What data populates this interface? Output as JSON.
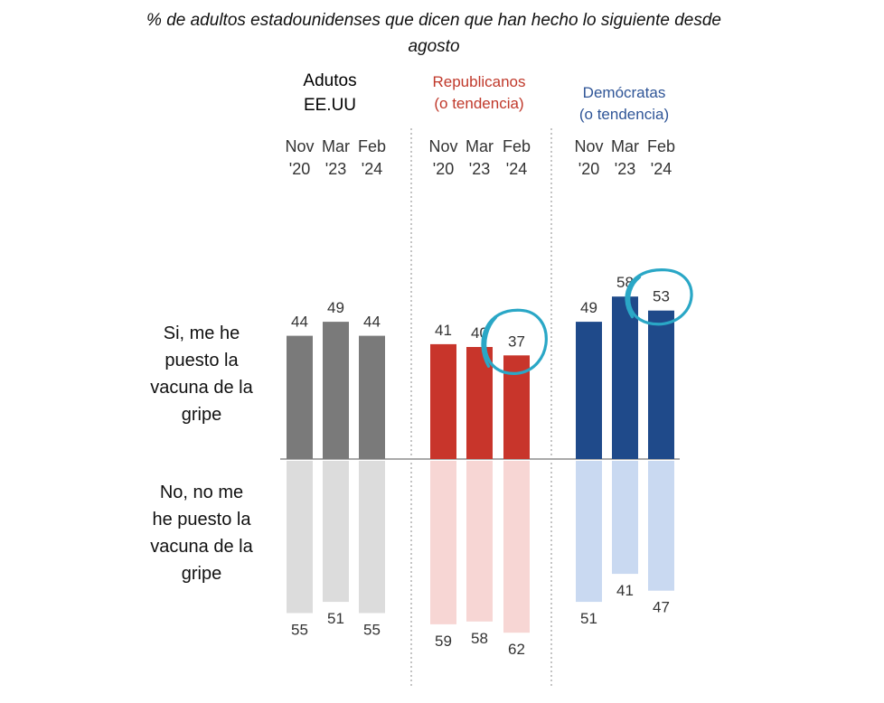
{
  "title_line1": "% de  adultos estadounidenses que dicen que han hecho lo siguiente desde",
  "title_line2": "agosto",
  "groups": [
    {
      "label_line1": "Adutos",
      "label_line2": "EE.UU",
      "color_label": "#111111"
    },
    {
      "label_line1": "Republicanos",
      "label_line2": "(o tendencia)",
      "color_label": "#c0392b"
    },
    {
      "label_line1": "Demócratas",
      "label_line2": "(o tendencia)",
      "color_label": "#2f5597"
    }
  ],
  "row_labels": {
    "yes": [
      "Si, me he",
      "puesto la",
      "vacuna de la",
      "gripe"
    ],
    "no": [
      "No, no me",
      "he puesto la",
      "vacuna de la",
      "gripe"
    ]
  },
  "colors": {
    "adults_yes": "#7a7a7a",
    "adults_no": "#dcdcdc",
    "rep_yes": "#c8352b",
    "rep_no": "#f7d6d4",
    "dem_yes": "#1f4a8a",
    "dem_no": "#c9d9f1",
    "circle": "#2aa7c6",
    "divider": "#888888",
    "baseline": "#aaaaaa"
  },
  "chart_data": {
    "type": "bar",
    "categories": [
      "Nov '20",
      "Mar '23",
      "Feb '24"
    ],
    "groups": [
      "Adutos EE.UU",
      "Republicanos (o tendencia)",
      "Demócratas (o tendencia)"
    ],
    "series": [
      {
        "name": "Si, me he puesto la vacuna de la gripe",
        "values": {
          "Adutos EE.UU": [
            44,
            49,
            44
          ],
          "Republicanos (o tendencia)": [
            41,
            40,
            37
          ],
          "Demócratas (o tendencia)": [
            49,
            58,
            53
          ]
        }
      },
      {
        "name": "No, no me he puesto la vacuna de la gripe",
        "values": {
          "Adutos EE.UU": [
            55,
            51,
            55
          ],
          "Republicanos (o tendencia)": [
            59,
            58,
            62
          ],
          "Demócratas (o tendencia)": [
            51,
            41,
            47
          ]
        }
      }
    ],
    "tick_labels": [
      [
        "Nov",
        "'20"
      ],
      [
        "Mar",
        "'23"
      ],
      [
        "Feb",
        "'24"
      ]
    ],
    "highlighted": [
      {
        "group": "Republicanos (o tendencia)",
        "category": "Feb '24"
      },
      {
        "group": "Demócratas (o tendencia)",
        "category": "Feb '24"
      }
    ]
  }
}
